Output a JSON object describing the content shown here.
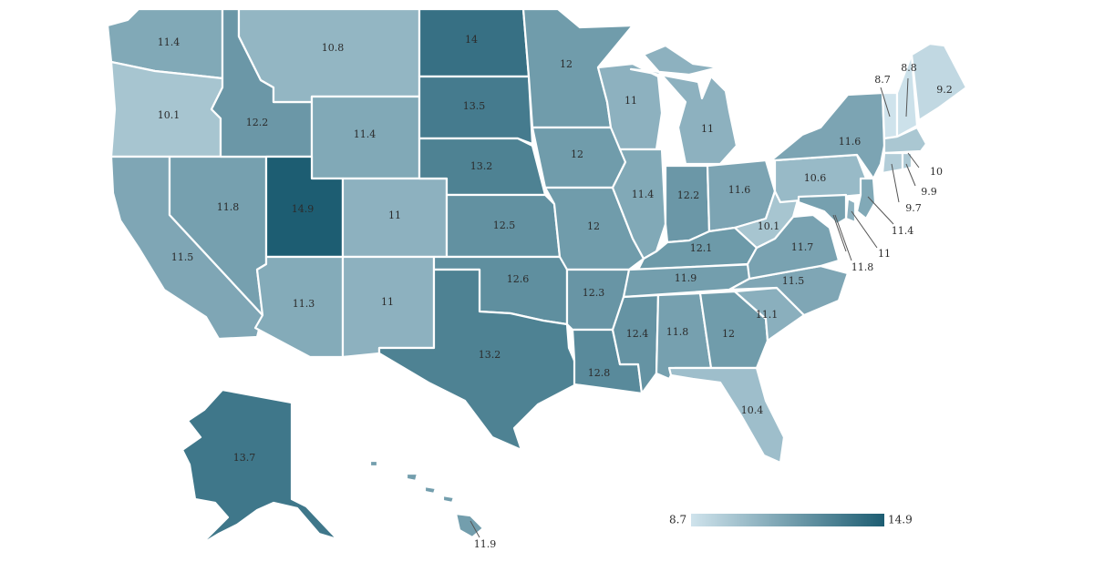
{
  "scale": {
    "min": 8.7,
    "max": 14.9,
    "low_color": "#cfe3ec",
    "high_color": "#1d5d72"
  },
  "legend": {
    "min_label": "8.7",
    "max_label": "14.9"
  },
  "states": [
    {
      "id": "WA",
      "value": 11.4
    },
    {
      "id": "OR",
      "value": 10.1
    },
    {
      "id": "CA",
      "value": 11.5
    },
    {
      "id": "NV",
      "value": 11.8
    },
    {
      "id": "ID",
      "value": 12.2
    },
    {
      "id": "MT",
      "value": 10.8
    },
    {
      "id": "WY",
      "value": 11.4
    },
    {
      "id": "UT",
      "value": 14.9
    },
    {
      "id": "AZ",
      "value": 11.3
    },
    {
      "id": "CO",
      "value": 11
    },
    {
      "id": "NM",
      "value": 11
    },
    {
      "id": "ND",
      "value": 14
    },
    {
      "id": "SD",
      "value": 13.5
    },
    {
      "id": "NE",
      "value": 13.2
    },
    {
      "id": "KS",
      "value": 12.5
    },
    {
      "id": "OK",
      "value": 12.6
    },
    {
      "id": "TX",
      "value": 13.2
    },
    {
      "id": "MN",
      "value": 12
    },
    {
      "id": "IA",
      "value": 12
    },
    {
      "id": "MO",
      "value": 12
    },
    {
      "id": "AR",
      "value": 12.3
    },
    {
      "id": "LA",
      "value": 12.8
    },
    {
      "id": "WI",
      "value": 11
    },
    {
      "id": "IL",
      "value": 11.4
    },
    {
      "id": "MI",
      "value": 11
    },
    {
      "id": "IN",
      "value": 12.2
    },
    {
      "id": "OH",
      "value": 11.6
    },
    {
      "id": "KY",
      "value": 12.1
    },
    {
      "id": "TN",
      "value": 11.9
    },
    {
      "id": "MS",
      "value": 12.4
    },
    {
      "id": "AL",
      "value": 11.8
    },
    {
      "id": "GA",
      "value": 12
    },
    {
      "id": "FL",
      "value": 10.4
    },
    {
      "id": "SC",
      "value": 11.1
    },
    {
      "id": "NC",
      "value": 11.5
    },
    {
      "id": "VA",
      "value": 11.7
    },
    {
      "id": "WV",
      "value": 10.1
    },
    {
      "id": "PA",
      "value": 10.6
    },
    {
      "id": "NY",
      "value": 11.6
    },
    {
      "id": "VT",
      "value": 8.7
    },
    {
      "id": "NH",
      "value": 8.8
    },
    {
      "id": "ME",
      "value": 9.2
    },
    {
      "id": "MA",
      "value": 10
    },
    {
      "id": "RI",
      "value": 9.9
    },
    {
      "id": "CT",
      "value": 9.7
    },
    {
      "id": "NJ",
      "value": 11.4
    },
    {
      "id": "DE",
      "value": 11
    },
    {
      "id": "MD",
      "value": 11.8
    },
    {
      "id": "AK",
      "value": 13.7
    },
    {
      "id": "HI",
      "value": 11.9
    }
  ]
}
